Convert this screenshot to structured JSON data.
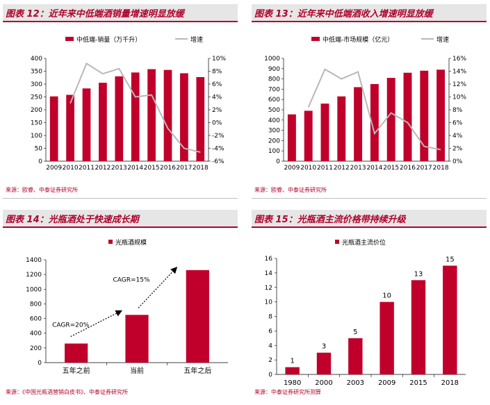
{
  "panels": [
    {
      "title": "图表 12：近年来中低端酒销量增速明显放缓",
      "source": "来源：欧睿、中泰证券研究所"
    },
    {
      "title": "图表 13：近年来中低端酒收入增速明显放缓",
      "source": "来源：欧睿、中泰证券研究所"
    },
    {
      "title": "图表 14：光瓶酒处于快速成长期",
      "source": "来源：《中国光瓶酒营销白皮书》、中泰证券研究所"
    },
    {
      "title": "图表 15：光瓶酒主流价格带持续升级",
      "source": "来源：中泰证券研究所测算"
    }
  ],
  "colors": {
    "bar": "#c0002a",
    "line": "#b8b8b8",
    "title": "#b0002a",
    "titlebg": "#e6e6e6"
  },
  "chart_data": [
    {
      "type": "bar+line",
      "categories": [
        "2009",
        "2010",
        "2011",
        "2012",
        "2013",
        "2014",
        "2015",
        "2016",
        "2017",
        "2018"
      ],
      "series": [
        {
          "name": "中低端-销量（万千升）",
          "type": "bar",
          "axis": "left",
          "values": [
            252,
            258,
            283,
            305,
            330,
            345,
            358,
            355,
            342,
            327
          ]
        },
        {
          "name": "增速",
          "type": "line",
          "axis": "right",
          "values": [
            null,
            3.0,
            9.2,
            7.6,
            8.4,
            4.0,
            4.3,
            -0.9,
            -4.0,
            -4.6
          ]
        }
      ],
      "ylim_left": [
        0,
        400
      ],
      "yticks_left": [
        "0",
        "50",
        "100",
        "150",
        "200",
        "250",
        "300",
        "350",
        "400"
      ],
      "ylim_right": [
        -6,
        10
      ],
      "yticks_right": [
        "-6%",
        "-4%",
        "-2%",
        "0%",
        "2%",
        "4%",
        "6%",
        "8%",
        "10%"
      ],
      "legend": "top"
    },
    {
      "type": "bar+line",
      "categories": [
        "2009",
        "2010",
        "2011",
        "2012",
        "2013",
        "2014",
        "2015",
        "2016",
        "2017",
        "2018"
      ],
      "series": [
        {
          "name": "中低端-市场规模（亿元）",
          "type": "bar",
          "axis": "left",
          "values": [
            455,
            490,
            560,
            630,
            720,
            750,
            810,
            860,
            880,
            890
          ]
        },
        {
          "name": "增速",
          "type": "line",
          "axis": "right",
          "values": [
            null,
            8.4,
            14.3,
            12.8,
            13.9,
            4.3,
            7.5,
            6.0,
            2.3,
            1.8
          ]
        }
      ],
      "ylim_left": [
        0,
        1000
      ],
      "yticks_left": [
        "0",
        "100",
        "200",
        "300",
        "400",
        "500",
        "600",
        "700",
        "800",
        "900",
        "1000"
      ],
      "ylim_right": [
        0,
        16
      ],
      "yticks_right": [
        "0%",
        "2%",
        "4%",
        "6%",
        "8%",
        "10%",
        "12%",
        "14%",
        "16%"
      ],
      "legend": "top"
    },
    {
      "type": "bar",
      "categories": [
        "五年之前",
        "当前",
        "五年之后"
      ],
      "series": [
        {
          "name": "光瓶酒规模",
          "values": [
            260,
            650,
            1260
          ]
        }
      ],
      "ylim": [
        0,
        1400
      ],
      "yticks": [
        "0",
        "200",
        "400",
        "600",
        "800",
        "1000",
        "1200",
        "1400"
      ],
      "annotations": [
        "CAGR=20%",
        "CAGR=15%"
      ],
      "legend": "top"
    },
    {
      "type": "bar",
      "categories": [
        "1980",
        "2000",
        "2003",
        "2009",
        "2015",
        "2018"
      ],
      "series": [
        {
          "name": "光瓶酒主流价位",
          "values": [
            1,
            3,
            5,
            10,
            13,
            15
          ]
        }
      ],
      "data_labels": [
        "1",
        "3",
        "5",
        "10",
        "13",
        "15"
      ],
      "ylim": [
        0,
        16
      ],
      "yticks": [
        "0",
        "2",
        "4",
        "6",
        "8",
        "10",
        "12",
        "14",
        "16"
      ],
      "legend": "top"
    }
  ]
}
